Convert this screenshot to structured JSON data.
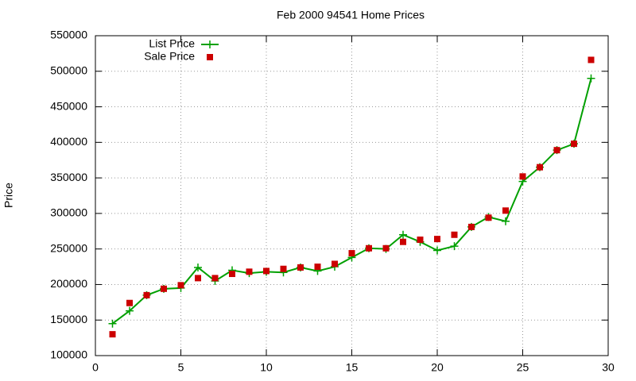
{
  "chart_data": {
    "type": "line",
    "title": "Feb 2000 94541 Home Prices",
    "y_label": "Price",
    "x": [
      1,
      2,
      3,
      4,
      5,
      6,
      7,
      8,
      9,
      10,
      11,
      12,
      13,
      14,
      15,
      16,
      17,
      18,
      19,
      20,
      21,
      22,
      23,
      24,
      25,
      26,
      27,
      28,
      29
    ],
    "series": [
      {
        "name": "List Price",
        "color": "#00a000",
        "style": "linespoints",
        "values": [
          145000,
          163000,
          185000,
          194000,
          195000,
          224000,
          205000,
          220000,
          216000,
          218000,
          217000,
          224000,
          219000,
          225000,
          238000,
          251000,
          250000,
          270000,
          260000,
          248000,
          254000,
          281000,
          295000,
          289000,
          345000,
          365000,
          389000,
          398000,
          490000
        ]
      },
      {
        "name": "Sale Price",
        "color": "#cc0000",
        "style": "points",
        "values": [
          130000,
          174000,
          185000,
          194000,
          199000,
          209000,
          209000,
          215000,
          218000,
          219000,
          222000,
          224000,
          225000,
          229000,
          244000,
          251000,
          251000,
          260000,
          263000,
          264000,
          270000,
          281000,
          294000,
          304000,
          352000,
          365000,
          389000,
          398000,
          516000
        ]
      }
    ],
    "xlim": [
      0,
      30
    ],
    "xticks": [
      0,
      5,
      10,
      15,
      20,
      25,
      30
    ],
    "ylim": [
      100000,
      550000
    ],
    "yticks": [
      100000,
      150000,
      200000,
      250000,
      300000,
      350000,
      400000,
      450000,
      500000,
      550000
    ],
    "grid": true,
    "legend": "top-left"
  }
}
